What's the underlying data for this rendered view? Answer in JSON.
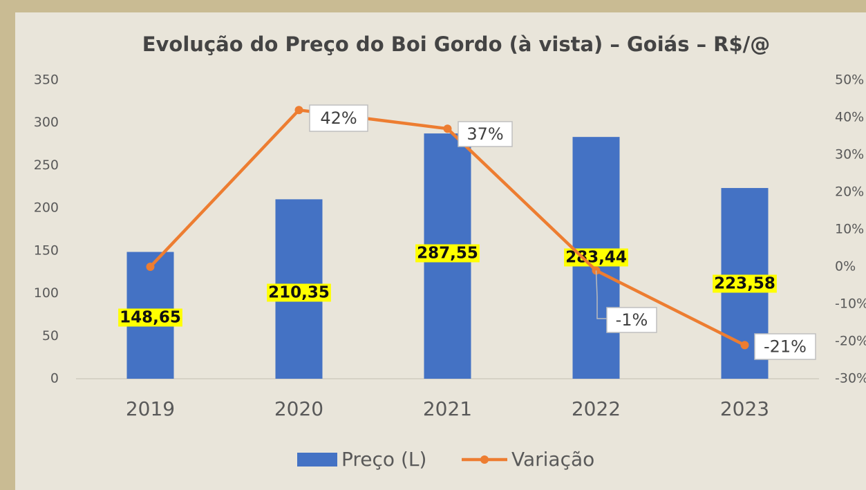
{
  "chart_data": {
    "type": "bar_line",
    "title": "Evolução do Preço do Boi Gordo (à vista) – Goiás – R$/@",
    "categories": [
      "2019",
      "2020",
      "2021",
      "2022",
      "2023"
    ],
    "series": [
      {
        "name": "Preço (L)",
        "color": "#4472c4",
        "type": "bar",
        "values": [
          148.65,
          210.35,
          287.55,
          283.44,
          223.58
        ],
        "value_labels": [
          "148,65",
          "210,35",
          "287,55",
          "283,44",
          "223,58"
        ]
      },
      {
        "name": "Variação",
        "color": "#ed7d31",
        "type": "line",
        "axis": "y2",
        "values": [
          0,
          42,
          37,
          -1,
          -21
        ],
        "value_labels": [
          null,
          "42%",
          "37%",
          "-1%",
          "-21%"
        ]
      }
    ],
    "ylim": [
      0,
      350
    ],
    "yticks": [
      0,
      50,
      100,
      150,
      200,
      250,
      300,
      350
    ],
    "y2lim": [
      -30,
      50
    ],
    "y2ticks": [
      {
        "value": -30,
        "label": "-30%"
      },
      {
        "value": -20,
        "label": "-20%"
      },
      {
        "value": -10,
        "label": "-10%"
      },
      {
        "value": 0,
        "label": "0%"
      },
      {
        "value": 10,
        "label": "10%"
      },
      {
        "value": 20,
        "label": "20%"
      },
      {
        "value": 30,
        "label": "30%"
      },
      {
        "value": 40,
        "label": "40%"
      },
      {
        "value": 50,
        "label": "50%"
      }
    ],
    "legend": "bottom"
  }
}
